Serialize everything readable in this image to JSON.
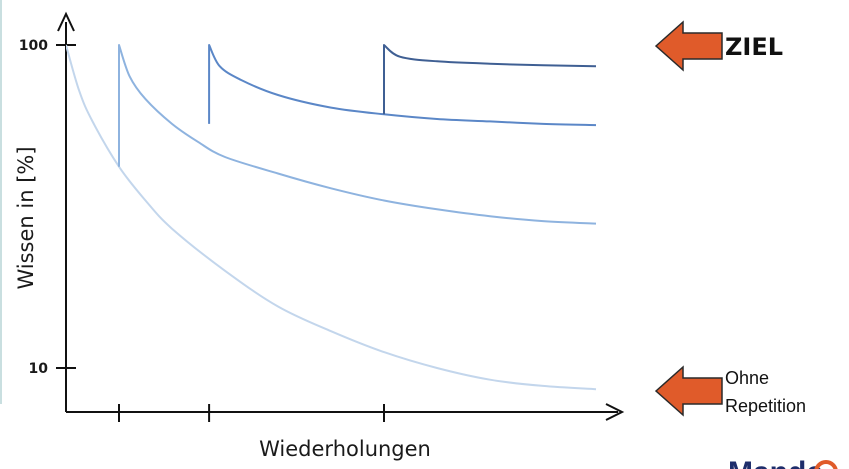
{
  "chart_data": {
    "type": "line",
    "title": "",
    "xlabel": "Wiederholungen",
    "ylabel": "Wissen in [%]",
    "yscale": "log",
    "ylim": [
      8,
      100
    ],
    "xlim": [
      0,
      10
    ],
    "y_ticks": [
      {
        "value": 100,
        "label": "100"
      },
      {
        "value": 10,
        "label": "10"
      }
    ],
    "x_ticks": [
      1,
      2.7,
      6
    ],
    "grid": false,
    "legend": "none",
    "series": [
      {
        "color": "#c3d6ec",
        "x": [
          0,
          0.25,
          0.5,
          1,
          1.5,
          2,
          3,
          4,
          5,
          6,
          7,
          8,
          9,
          10
        ],
        "y": [
          100,
          72,
          58,
          42,
          33,
          27,
          20,
          15.5,
          13,
          11.2,
          10,
          9.2,
          8.8,
          8.6
        ]
      },
      {
        "color": "#8eb3df",
        "x": [
          1,
          1,
          1.2,
          1.5,
          2,
          2.5,
          3,
          4,
          5,
          6,
          7,
          8,
          9,
          10
        ],
        "y": [
          42,
          100,
          80,
          68,
          57,
          50,
          45,
          40,
          36,
          33,
          31,
          29.5,
          28.5,
          28
        ]
      },
      {
        "color": "#5b87c7",
        "x": [
          2.7,
          2.7,
          2.9,
          3.3,
          4,
          5,
          6,
          7,
          8,
          9,
          10
        ],
        "y": [
          57,
          100,
          86,
          78,
          70,
          64,
          61,
          59,
          58,
          57,
          56.5
        ]
      },
      {
        "color": "#3f5f93",
        "x": [
          6,
          6,
          6.3,
          7,
          8,
          9,
          10
        ],
        "y": [
          61,
          100,
          92,
          89,
          87.5,
          86.5,
          86
        ]
      }
    ],
    "annotations": [
      {
        "text": "ZIEL",
        "points_to": "top curve end"
      },
      {
        "text": "Ohne Repetition",
        "points_to": "bottom curve end"
      }
    ]
  },
  "labels": {
    "goal": "ZIEL",
    "no_repetition_line1": "Ohne",
    "no_repetition_line2": "Repetition"
  },
  "brand": {
    "partial_text": "Mande",
    "color": "#1e2d6b",
    "accent": "#e05b2a"
  },
  "colors": {
    "arrow_fill": "#e05b2a",
    "arrow_stroke": "#2a2a2a",
    "axis": "#111111"
  }
}
